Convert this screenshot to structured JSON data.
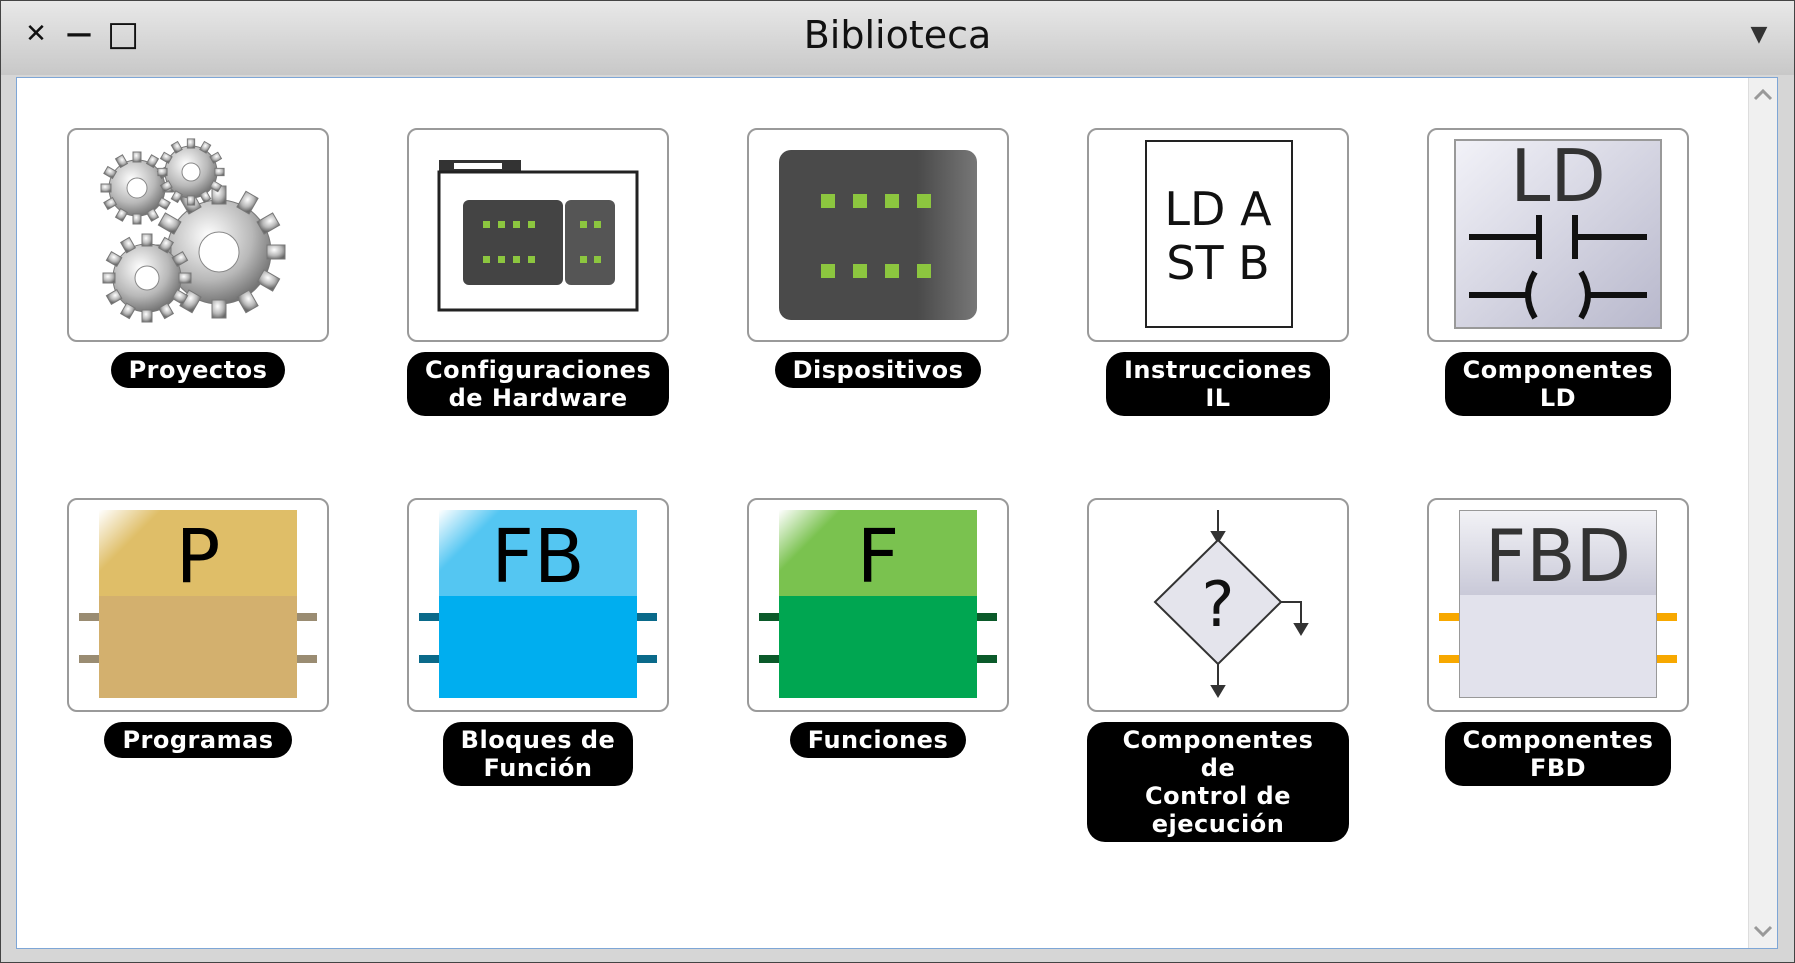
{
  "window": {
    "title": "Biblioteca",
    "close_glyph": "✕",
    "minimize_glyph": "—",
    "maximize_glyph": "□",
    "menu_glyph": "▼"
  },
  "items": [
    {
      "label": "Proyectos",
      "icon": "gears-icon"
    },
    {
      "label": "Configuraciones\nde Hardware",
      "icon": "hardware-config-icon"
    },
    {
      "label": "Dispositivos",
      "icon": "device-icon"
    },
    {
      "label": "Instrucciones\nIL",
      "icon": "il-instructions-icon",
      "text_line1": "LD A",
      "text_line2": "ST B"
    },
    {
      "label": "Componentes\nLD",
      "icon": "ld-components-icon",
      "text": "LD"
    },
    {
      "label": "Programas",
      "icon": "program-block-icon",
      "text": "P"
    },
    {
      "label": "Bloques de\nFunción",
      "icon": "function-block-icon",
      "text": "FB"
    },
    {
      "label": "Funciones",
      "icon": "function-icon",
      "text": "F"
    },
    {
      "label": "Componentes de\nControl de\nejecución",
      "icon": "flow-control-icon",
      "text": "?"
    },
    {
      "label": "Componentes\nFBD",
      "icon": "fbd-components-icon",
      "text": "FBD"
    }
  ],
  "colors": {
    "program_top": "#dfbe68",
    "program_bottom": "#d3b06e",
    "fb_top": "#54c6f2",
    "fb_bottom": "#00aeef",
    "f_top": "#7ac24f",
    "f_bottom": "#00a651",
    "led_green": "#8cc63f",
    "fbd_pin": "#f7a800"
  }
}
